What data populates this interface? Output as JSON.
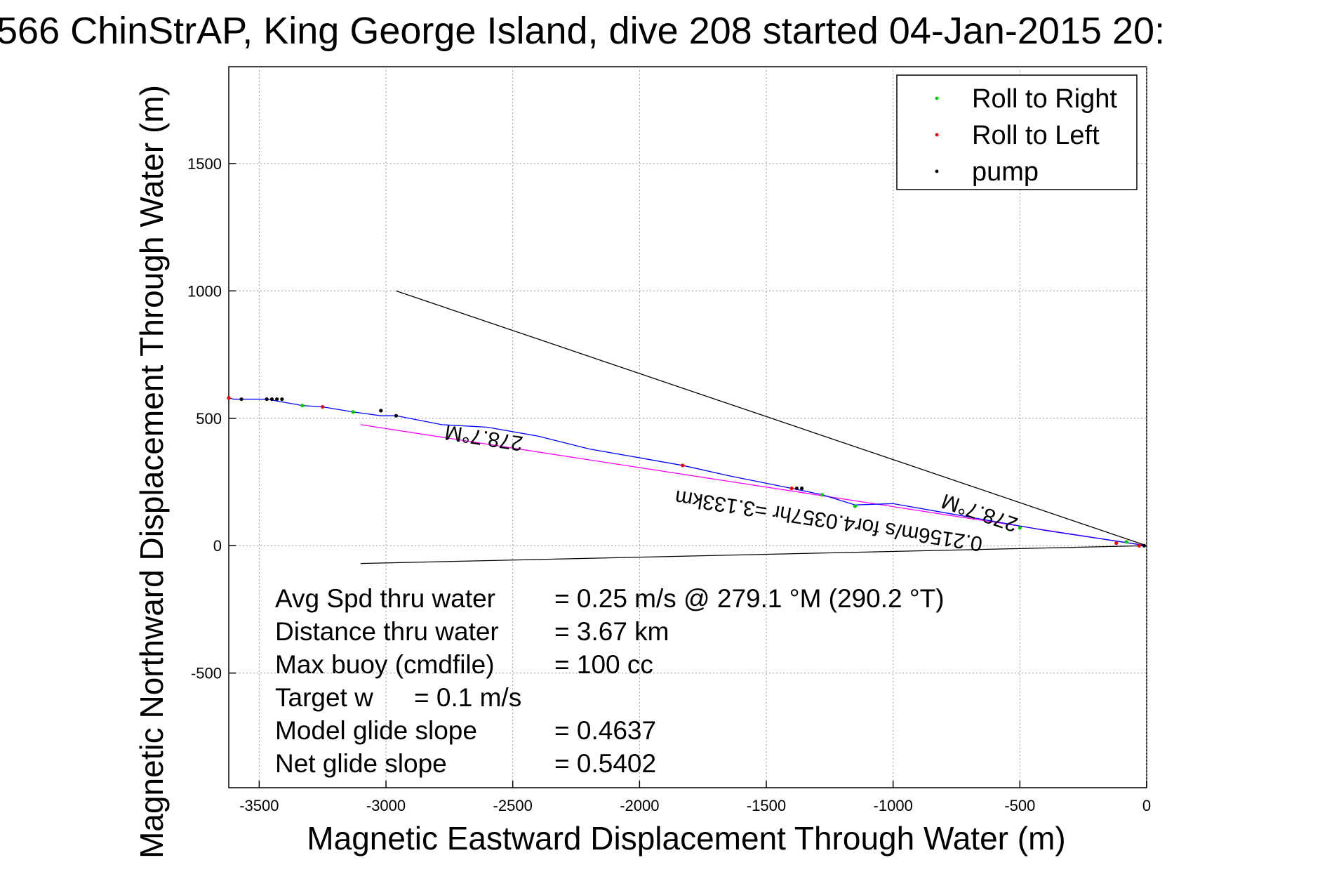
{
  "chart_data": {
    "type": "scatter",
    "title": "566 ChinStrAP, King George Island, dive 208 started 04-Jan-2015 20:",
    "xlabel": "Magnetic Eastward Displacement Through Water (m)",
    "ylabel": "Magnetic Northward Displacement Through Water (m)",
    "xlim": [
      -3620,
      0
    ],
    "ylim": [
      -950,
      1880
    ],
    "xticks": [
      -3500,
      -3000,
      -2500,
      -2000,
      -1500,
      -1000,
      -500,
      0
    ],
    "yticks": [
      -500,
      0,
      500,
      1000,
      1500
    ],
    "grid": true,
    "legend": {
      "placement": "top-right",
      "entries": [
        {
          "label": "Roll to Right",
          "color": "#00cc00"
        },
        {
          "label": "Roll to Left",
          "color": "#ff0000"
        },
        {
          "label": "pump",
          "color": "#000000"
        }
      ]
    },
    "track": {
      "color": "#0000ff",
      "x": [
        0,
        -100,
        -200,
        -400,
        -600,
        -800,
        -1000,
        -1150,
        -1280,
        -1400,
        -1500,
        -1650,
        -1830,
        -2000,
        -2200,
        -2400,
        -2600,
        -2780,
        -2960,
        -3020,
        -3130,
        -3250,
        -3330,
        -3470,
        -3520,
        -3600,
        -3620
      ],
      "y": [
        0,
        15,
        30,
        60,
        95,
        130,
        165,
        160,
        200,
        225,
        245,
        275,
        315,
        345,
        380,
        430,
        465,
        475,
        510,
        510,
        525,
        545,
        550,
        575,
        575,
        575,
        580
      ]
    },
    "markers": {
      "roll_right": {
        "x": [
          -3330,
          -3130,
          -1280,
          -1150,
          -500,
          -80
        ],
        "y": [
          550,
          525,
          200,
          155,
          70,
          15
        ]
      },
      "roll_left": {
        "x": [
          -3620,
          -3250,
          -1830,
          -1400,
          -120,
          -30
        ],
        "y": [
          580,
          545,
          315,
          225,
          10,
          0
        ]
      },
      "pump": {
        "x": [
          -3570,
          -3470,
          -3450,
          -3430,
          -3410,
          -3020,
          -2960,
          -1380,
          -1360,
          -10
        ],
        "y": [
          575,
          575,
          575,
          575,
          575,
          530,
          510,
          225,
          225,
          0
        ]
      }
    },
    "lines": [
      {
        "name": "upper-bound",
        "color": "#000000",
        "x": [
          0,
          -2960
        ],
        "y": [
          0,
          1000
        ]
      },
      {
        "name": "lower-bound",
        "color": "#000000",
        "x": [
          0,
          -3100
        ],
        "y": [
          0,
          -70
        ]
      },
      {
        "name": "net-displacement",
        "color": "#ff00ff",
        "x": [
          0,
          -3100
        ],
        "y": [
          0,
          475
        ]
      }
    ],
    "rotated_labels": [
      {
        "text": "278.7°M",
        "x": -2610,
        "y": 450,
        "angle": 188.7
      },
      {
        "text": "0.2156m/s for4.0357hr =3.133km",
        "x": -1250,
        "y": 125,
        "angle": 188.7
      },
      {
        "text": "278.7°M",
        "x": -650,
        "y": 155,
        "angle": 198.7
      }
    ],
    "annotations": [
      {
        "label": "Avg Spd thru water",
        "value": "=  0.25 m/s @ 279.1 °M (290.2 °T)"
      },
      {
        "label": "Distance thru water",
        "value": "=  3.67 km"
      },
      {
        "label": "Max buoy (cmdfile)",
        "value": "= 100 cc"
      },
      {
        "label": "Target w",
        "value": "= 0.1 m/s"
      },
      {
        "label": "Model glide slope",
        "value": "= 0.4637"
      },
      {
        "label": "Net glide slope",
        "value": "= 0.5402"
      }
    ]
  }
}
